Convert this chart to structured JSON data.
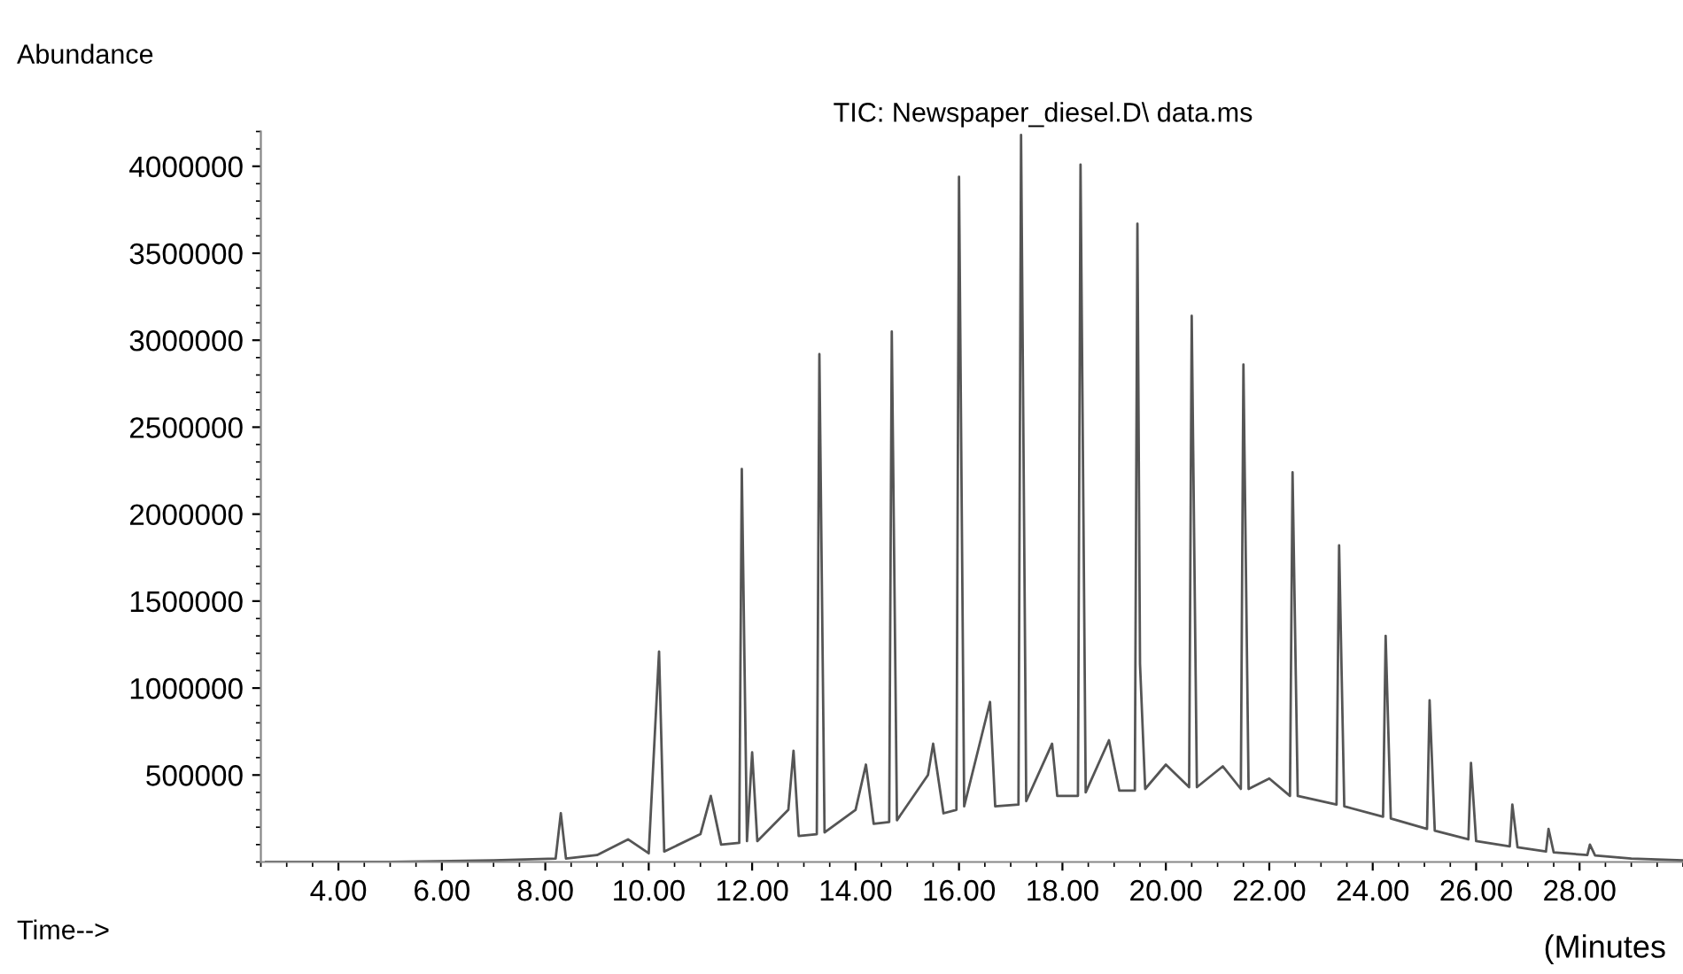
{
  "chart_data": {
    "type": "line",
    "title": "TIC: Newspaper_diesel.D\\ data.ms",
    "ylabel": "Abundance",
    "xlabel": "Time-->",
    "annotations": [
      "(Minutes"
    ],
    "x": [
      2.6,
      5.0,
      7.0,
      8.2,
      8.3,
      8.4,
      9.0,
      9.6,
      10.0,
      10.2,
      10.3,
      11.0,
      11.2,
      11.4,
      11.75,
      11.8,
      11.9,
      12.0,
      12.1,
      12.7,
      12.8,
      12.9,
      13.25,
      13.3,
      13.4,
      14.0,
      14.2,
      14.35,
      14.65,
      14.7,
      14.8,
      15.4,
      15.5,
      15.7,
      15.95,
      16.0,
      16.1,
      16.6,
      16.7,
      17.15,
      17.2,
      17.3,
      17.8,
      17.9,
      18.3,
      18.35,
      18.45,
      18.9,
      19.1,
      19.4,
      19.45,
      19.5,
      19.6,
      20.0,
      20.45,
      20.5,
      20.6,
      21.1,
      21.45,
      21.5,
      21.6,
      22.0,
      22.4,
      22.45,
      22.55,
      23.3,
      23.35,
      23.45,
      24.2,
      24.25,
      24.35,
      25.05,
      25.1,
      25.2,
      25.85,
      25.9,
      26.0,
      26.65,
      26.7,
      26.8,
      27.35,
      27.4,
      27.5,
      28.15,
      28.2,
      28.3,
      29.0,
      30.0
    ],
    "series": [
      {
        "color": "#555555",
        "values": [
          0,
          0,
          10000,
          20000,
          280000,
          20000,
          40000,
          130000,
          50000,
          1210000,
          60000,
          160000,
          380000,
          100000,
          110000,
          2260000,
          120000,
          630000,
          120000,
          300000,
          640000,
          150000,
          160000,
          2920000,
          170000,
          300000,
          560000,
          220000,
          230000,
          3050000,
          240000,
          500000,
          680000,
          280000,
          300000,
          3940000,
          320000,
          920000,
          320000,
          330000,
          4180000,
          350000,
          680000,
          380000,
          380000,
          4010000,
          400000,
          700000,
          410000,
          410000,
          3670000,
          1140000,
          420000,
          560000,
          430000,
          3140000,
          430000,
          550000,
          420000,
          2860000,
          420000,
          480000,
          380000,
          2240000,
          380000,
          330000,
          1820000,
          320000,
          260000,
          1300000,
          250000,
          190000,
          930000,
          180000,
          130000,
          570000,
          120000,
          90000,
          330000,
          85000,
          60000,
          190000,
          55000,
          40000,
          100000,
          38000,
          20000,
          10000
        ]
      }
    ],
    "xlim": [
      2.5,
      30.0
    ],
    "ylim": [
      0,
      4200000
    ],
    "xticks": [
      {
        "value": 4,
        "label": "4.00"
      },
      {
        "value": 6,
        "label": "6.00"
      },
      {
        "value": 8,
        "label": "8.00"
      },
      {
        "value": 10,
        "label": "10.00"
      },
      {
        "value": 12,
        "label": "12.00"
      },
      {
        "value": 14,
        "label": "14.00"
      },
      {
        "value": 16,
        "label": "16.00"
      },
      {
        "value": 18,
        "label": "18.00"
      },
      {
        "value": 20,
        "label": "20.00"
      },
      {
        "value": 22,
        "label": "22.00"
      },
      {
        "value": 24,
        "label": "24.00"
      },
      {
        "value": 26,
        "label": "26.00"
      },
      {
        "value": 28,
        "label": "28.00"
      }
    ],
    "yticks": [
      500000,
      1000000,
      1500000,
      2000000,
      2500000,
      3000000,
      3500000,
      4000000
    ],
    "grid": false,
    "legend": false,
    "marker": "none",
    "line_style": "solid"
  }
}
